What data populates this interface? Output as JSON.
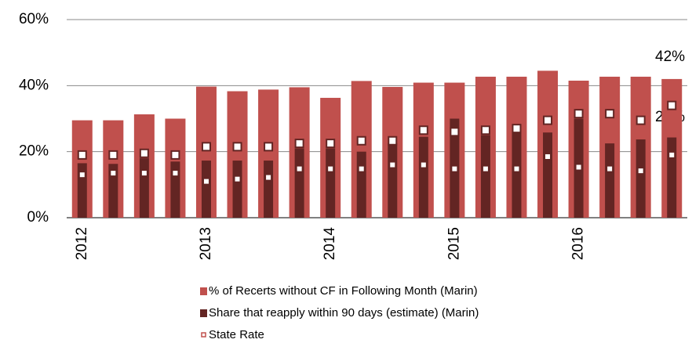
{
  "chart_data": {
    "type": "bar",
    "categories": [
      "2012",
      null,
      null,
      null,
      "2013",
      null,
      null,
      null,
      "2014",
      null,
      null,
      null,
      "2015",
      null,
      null,
      null,
      "2016",
      null,
      null,
      null
    ],
    "series": [
      {
        "name": "% of Recerts without CF in Following Month (Marin)",
        "color": "#c0504d",
        "values": [
          29.5,
          29.5,
          31.3,
          30,
          39.7,
          38.3,
          38.8,
          39.5,
          36.3,
          41.4,
          39.6,
          40.9,
          40.9,
          42.7,
          42.7,
          44.5,
          41.5,
          42.7,
          42.7,
          42
        ]
      },
      {
        "name": "Share that reapply within 90 days (estimate) (Marin)",
        "color": "#632523",
        "values": [
          16.5,
          16.3,
          18,
          17,
          17.3,
          17.3,
          17.3,
          21,
          21,
          20,
          22.5,
          24.5,
          30,
          25,
          26,
          25.8,
          30,
          22.5,
          23.7,
          24.3
        ]
      },
      {
        "name": "State Rate",
        "color": "#632523",
        "values": [
          19,
          19,
          19.5,
          19,
          21.5,
          21.5,
          21.5,
          22.5,
          22.5,
          23.3,
          23.3,
          26.5,
          26,
          26.5,
          27,
          29.5,
          31.5,
          31.5,
          29.5,
          34
        ]
      },
      {
        "color": "#632523",
        "values": [
          13,
          13.5,
          13.5,
          13.5,
          11,
          11.7,
          12.2,
          14.8,
          14.8,
          14.8,
          16,
          16,
          14.8,
          14.8,
          14.8,
          18.5,
          15.3,
          14.8,
          14.2,
          19
        ]
      }
    ],
    "annotations": [
      "42%",
      "24%"
    ],
    "ylim": [
      0,
      60
    ],
    "yticks": [
      {
        "value": 0,
        "label": "0%"
      },
      {
        "value": 20,
        "label": "20%"
      },
      {
        "value": 40,
        "label": "40%"
      },
      {
        "value": 60,
        "label": "60%"
      }
    ],
    "grid": true
  }
}
